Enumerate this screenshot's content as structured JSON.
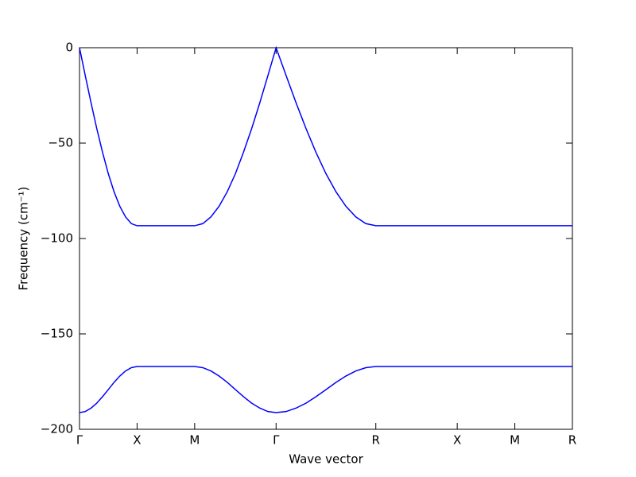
{
  "chart_data": {
    "type": "line",
    "xlabel": "Wave vector",
    "ylabel": "Frequency (cm⁻¹)",
    "x": [
      0,
      0.05,
      0.1,
      0.15,
      0.2,
      0.25,
      0.3,
      0.35,
      0.4,
      0.45,
      0.5,
      1.0,
      1.071,
      1.141,
      1.212,
      1.283,
      1.354,
      1.424,
      1.495,
      1.566,
      1.636,
      1.707,
      1.794,
      1.88,
      1.967,
      2.053,
      2.14,
      2.227,
      2.313,
      2.4,
      2.486,
      2.573,
      3.28,
      3.78,
      4.28
    ],
    "series": [
      {
        "color": "#0000ff",
        "values": [
          0,
          -14.6,
          -28.8,
          -42.4,
          -54.8,
          -66.0,
          -75.5,
          -83.1,
          -88.7,
          -92.2,
          -93.3,
          -93.3,
          -92.2,
          -88.7,
          -83.1,
          -75.5,
          -66.0,
          -54.8,
          -42.4,
          -28.8,
          -14.6,
          0,
          -14.6,
          -28.8,
          -42.4,
          -54.8,
          -66.0,
          -75.5,
          -83.1,
          -88.7,
          -92.2,
          -93.3,
          -93.3,
          -93.3,
          -93.3
        ]
      },
      {
        "color": "#0000ff",
        "values": [
          -191.25,
          -190.7,
          -188.9,
          -186.3,
          -182.9,
          -179.2,
          -175.4,
          -172.1,
          -169.4,
          -167.7,
          -167.1,
          -167.1,
          -167.7,
          -169.4,
          -172.1,
          -175.4,
          -179.2,
          -182.9,
          -186.3,
          -188.9,
          -190.7,
          -191.25,
          -190.7,
          -188.9,
          -186.3,
          -182.9,
          -179.2,
          -175.4,
          -172.1,
          -169.4,
          -167.7,
          -167.1,
          -167.1,
          -167.1,
          -167.1
        ]
      }
    ],
    "xlim": [
      0,
      4.28
    ],
    "xticks": [
      {
        "value": 0,
        "label": "Γ"
      },
      {
        "value": 0.5,
        "label": "X"
      },
      {
        "value": 1.0,
        "label": "M"
      },
      {
        "value": 1.707,
        "label": "Γ"
      },
      {
        "value": 2.573,
        "label": "R"
      },
      {
        "value": 3.28,
        "label": "X"
      },
      {
        "value": 3.78,
        "label": "M"
      },
      {
        "value": 4.28,
        "label": "R"
      }
    ],
    "ylim": [
      -200,
      0
    ],
    "yticks": [
      {
        "value": -200,
        "label": "−200"
      },
      {
        "value": -150,
        "label": "−150"
      },
      {
        "value": -100,
        "label": "−100"
      },
      {
        "value": -50,
        "label": "−50"
      },
      0
    ],
    "grid": false
  }
}
